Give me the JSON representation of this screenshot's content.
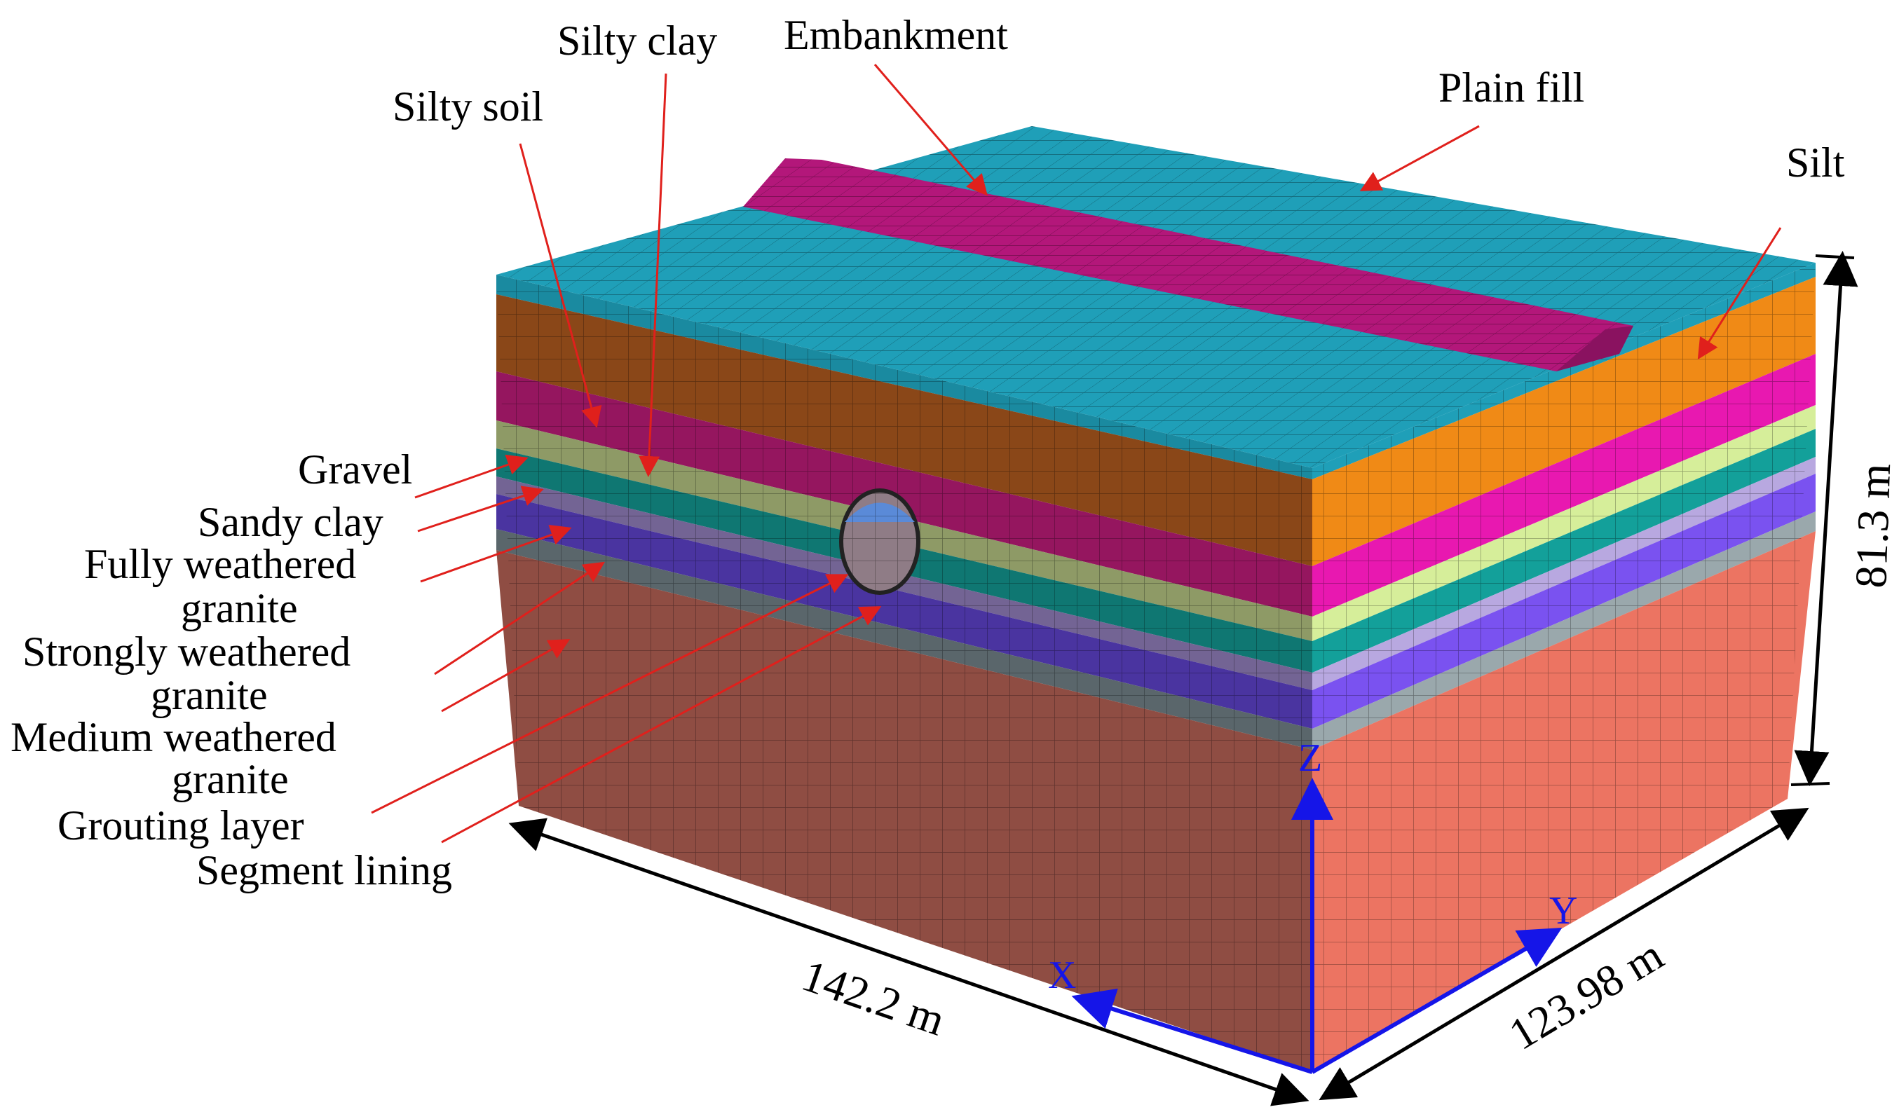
{
  "layers": [
    {
      "id": "plain-fill",
      "color": "#1f9fb8"
    },
    {
      "id": "silt",
      "color": "#c36a1a"
    },
    {
      "id": "silty-soil",
      "color": "#b8197a"
    },
    {
      "id": "silty-clay",
      "color": "#a9b57e"
    },
    {
      "id": "gravel",
      "color": "#128c86"
    },
    {
      "id": "sandy-clay",
      "color": "#8a78b0"
    },
    {
      "id": "fully-weathered-granite",
      "color": "#5a3fc0"
    },
    {
      "id": "strongly-weathered-granite",
      "color": "#6c7a80"
    },
    {
      "id": "medium-weathered-granite",
      "color": "#9a4a40"
    }
  ],
  "labels": {
    "embankment": "Embankment",
    "plain_fill": "Plain fill",
    "silty_clay": "Silty clay",
    "silty_soil": "Silty soil",
    "silt": "Silt",
    "gravel": "Gravel",
    "sandy_clay": "Sandy clay",
    "fully_weathered_1": "Fully weathered",
    "fully_weathered_2": "granite",
    "strongly_weathered_1": "Strongly weathered",
    "strongly_weathered_2": "granite",
    "medium_weathered_1": "Medium weathered",
    "medium_weathered_2": "granite",
    "grouting_layer": "Grouting layer",
    "segment_lining": "Segment lining"
  },
  "dimensions": {
    "length": "142.2 m",
    "width": "123.98 m",
    "height": "81.3 m"
  },
  "axes": {
    "x": "X",
    "y": "Y",
    "z": "Z"
  },
  "colors": {
    "arrow": "#e0201c",
    "axis": "#1515e8",
    "embankment": "#b3177a",
    "top": "#1f9fb8"
  }
}
